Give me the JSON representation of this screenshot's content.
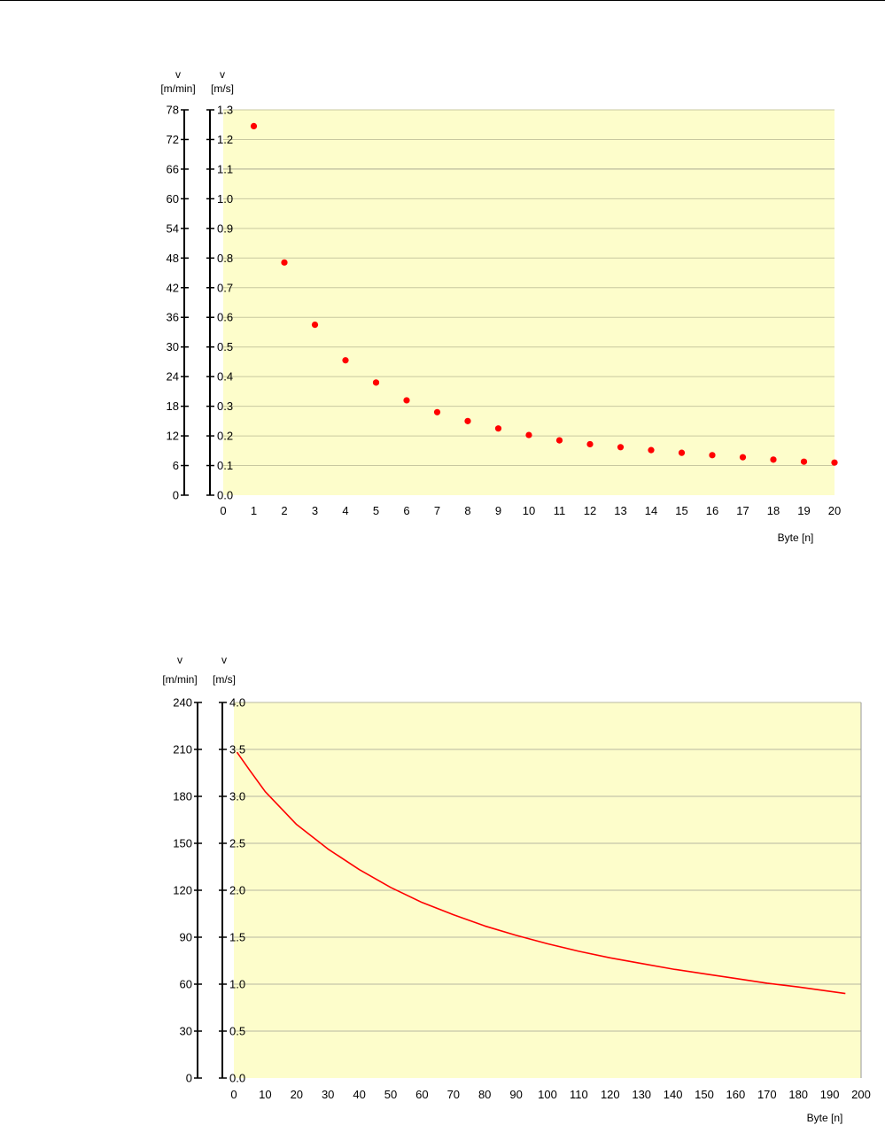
{
  "chart_data": [
    {
      "type": "scatter",
      "y_label_left": "v",
      "y_unit_left": "[m/min]",
      "y_label_right": "v",
      "y_unit_right": "[m/s]",
      "xlabel": "Byte [n]",
      "x_ticks": [
        "0",
        "1",
        "2",
        "3",
        "4",
        "5",
        "6",
        "7",
        "8",
        "9",
        "10",
        "11",
        "12",
        "13",
        "14",
        "15",
        "16",
        "17",
        "18",
        "19",
        "20"
      ],
      "y_ticks_left": [
        "0",
        "6",
        "12",
        "18",
        "24",
        "30",
        "36",
        "42",
        "48",
        "54",
        "60",
        "66",
        "72",
        "78"
      ],
      "y_ticks_right": [
        "0.0",
        "0.1",
        "0.2",
        "0.3",
        "0.4",
        "0.5",
        "0.6",
        "0.7",
        "0.8",
        "0.9",
        "1.0",
        "1.1",
        "1.2",
        "1.3"
      ],
      "xlim": [
        0,
        20
      ],
      "ylim": [
        0,
        1.3
      ],
      "grid": true,
      "colors": {
        "plot_bg": "#fdfdcb",
        "grid": "#c8c8a0",
        "grid_major": "#a8a890",
        "marker": "#ff0000"
      },
      "x": [
        1,
        2,
        3,
        4,
        5,
        6,
        7,
        8,
        9,
        10,
        11,
        12,
        13,
        14,
        15,
        16,
        17,
        18,
        19,
        20
      ],
      "values": [
        1.245,
        0.785,
        0.575,
        0.455,
        0.38,
        0.32,
        0.28,
        0.25,
        0.225,
        0.203,
        0.185,
        0.172,
        0.162,
        0.152,
        0.143,
        0.135,
        0.128,
        0.12,
        0.113,
        0.11
      ]
    },
    {
      "type": "line",
      "y_label_left": "v",
      "y_unit_left": "[m/min]",
      "y_label_right": "v",
      "y_unit_right": "[m/s]",
      "xlabel": "Byte [n]",
      "x_ticks": [
        "0",
        "10",
        "20",
        "30",
        "40",
        "50",
        "60",
        "70",
        "80",
        "90",
        "100",
        "110",
        "120",
        "130",
        "140",
        "150",
        "160",
        "170",
        "180",
        "190",
        "200"
      ],
      "y_ticks_left": [
        "0",
        "30",
        "60",
        "90",
        "120",
        "150",
        "180",
        "210",
        "240"
      ],
      "y_ticks_right": [
        "0.0",
        "0.5",
        "1.0",
        "1.5",
        "2.0",
        "2.5",
        "3.0",
        "3.5",
        "4.0"
      ],
      "xlim": [
        0,
        200
      ],
      "ylim": [
        0,
        4.0
      ],
      "grid": true,
      "colors": {
        "plot_bg": "#fdfdcb",
        "grid": "#b8b8a0",
        "line": "#ff0000"
      },
      "x": [
        1,
        5,
        10,
        20,
        30,
        40,
        50,
        60,
        70,
        80,
        90,
        100,
        110,
        120,
        130,
        140,
        150,
        160,
        170,
        180,
        195
      ],
      "values": [
        3.47,
        3.28,
        3.05,
        2.7,
        2.44,
        2.22,
        2.03,
        1.87,
        1.74,
        1.62,
        1.52,
        1.43,
        1.35,
        1.28,
        1.22,
        1.16,
        1.11,
        1.06,
        1.01,
        0.97,
        0.9
      ]
    }
  ]
}
